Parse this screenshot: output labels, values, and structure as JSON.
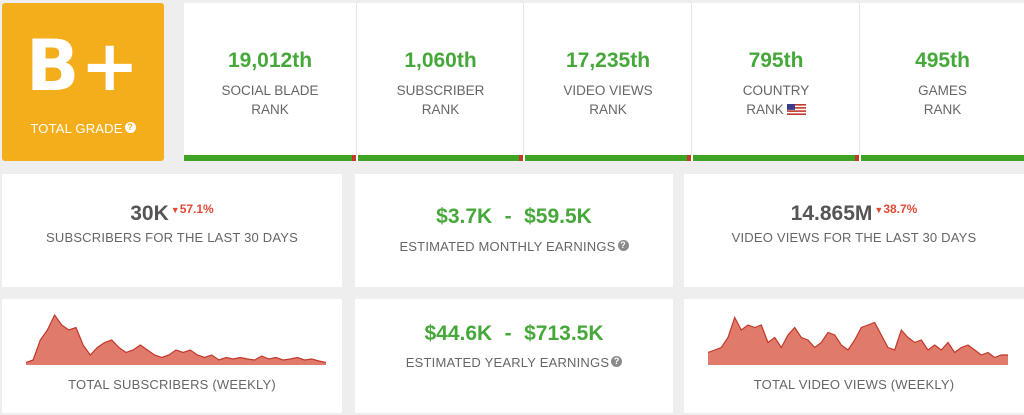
{
  "grade": {
    "letter": "B+",
    "label": "TOTAL GRADE",
    "help": "?"
  },
  "ranks": [
    {
      "value": "19,012th",
      "line1": "SOCIAL BLADE",
      "line2": "RANK"
    },
    {
      "value": "1,060th",
      "line1": "SUBSCRIBER",
      "line2": "RANK"
    },
    {
      "value": "17,235th",
      "line1": "VIDEO VIEWS",
      "line2": "RANK"
    },
    {
      "value": "795th",
      "line1": "COUNTRY",
      "line2": "RANK"
    },
    {
      "value": "495th",
      "line1": "GAMES",
      "line2": "RANK"
    }
  ],
  "subs30": {
    "value": "30K",
    "delta": "57.1%",
    "label": "SUBSCRIBERS FOR THE LAST 30 DAYS"
  },
  "monthly": {
    "low": "$3.7K",
    "sep": "-",
    "high": "$59.5K",
    "label": "ESTIMATED MONTHLY EARNINGS",
    "help": "?"
  },
  "views30": {
    "value": "14.865M",
    "delta": "38.7%",
    "label": "VIDEO VIEWS FOR THE LAST 30 DAYS"
  },
  "yearly": {
    "low": "$44.6K",
    "sep": "-",
    "high": "$713.5K",
    "label": "ESTIMATED YEARLY EARNINGS",
    "help": "?"
  },
  "subs_chart_label": "TOTAL SUBSCRIBERS (WEEKLY)",
  "views_chart_label": "TOTAL VIDEO VIEWS (WEEKLY)",
  "colors": {
    "grade": "#f5ae1b",
    "green": "#46a83a",
    "red": "#e04b36",
    "chart_fill": "#e07a6a",
    "chart_line": "#c0392b"
  },
  "chart_data": [
    {
      "type": "area",
      "xlabel": "TOTAL SUBSCRIBERS (WEEKLY)",
      "values": [
        0.05,
        0.1,
        0.5,
        0.7,
        1.0,
        0.8,
        0.7,
        0.75,
        0.4,
        0.2,
        0.35,
        0.45,
        0.5,
        0.35,
        0.25,
        0.3,
        0.4,
        0.3,
        0.2,
        0.15,
        0.2,
        0.3,
        0.25,
        0.3,
        0.2,
        0.15,
        0.2,
        0.1,
        0.15,
        0.12,
        0.15,
        0.12,
        0.1,
        0.18,
        0.12,
        0.15,
        0.1,
        0.12,
        0.15,
        0.1,
        0.12,
        0.08,
        0.05
      ]
    },
    {
      "type": "area",
      "xlabel": "TOTAL VIDEO VIEWS (WEEKLY)",
      "values": [
        0.25,
        0.3,
        0.35,
        0.55,
        0.95,
        0.7,
        0.8,
        0.75,
        0.8,
        0.45,
        0.55,
        0.35,
        0.6,
        0.75,
        0.55,
        0.5,
        0.35,
        0.45,
        0.65,
        0.6,
        0.4,
        0.3,
        0.5,
        0.75,
        0.8,
        0.85,
        0.6,
        0.35,
        0.3,
        0.7,
        0.55,
        0.45,
        0.5,
        0.3,
        0.4,
        0.3,
        0.45,
        0.25,
        0.35,
        0.4,
        0.3,
        0.2,
        0.25,
        0.15,
        0.2,
        0.2
      ]
    }
  ]
}
